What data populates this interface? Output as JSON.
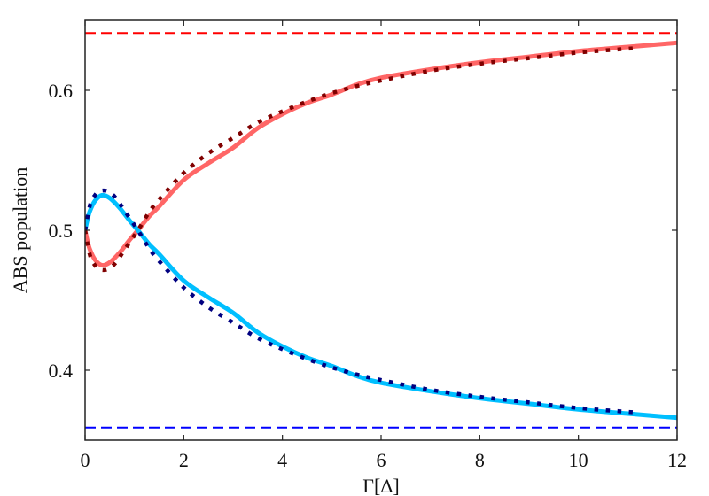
{
  "chart_data": {
    "type": "line",
    "title": "",
    "xlabel": "Γ[Δ]",
    "ylabel": "ABS population",
    "xlim": [
      0,
      12
    ],
    "ylim": [
      0.35,
      0.65
    ],
    "xticks": [
      0,
      2,
      4,
      6,
      8,
      10,
      12
    ],
    "xtick_labels": [
      "0",
      "2",
      "4",
      "6",
      "8",
      "10",
      "12"
    ],
    "yticks": [
      0.4,
      0.5,
      0.6
    ],
    "ytick_labels": [
      "0.4",
      "0.5",
      "0.6"
    ],
    "grid": false,
    "legend": null,
    "series": [
      {
        "name": "red-solid",
        "style": "solid",
        "color": "#ff6666",
        "x": [
          0,
          0.05,
          0.1,
          0.2,
          0.34,
          0.5,
          0.7,
          0.9,
          1.07,
          1.3,
          1.5,
          2,
          2.5,
          3,
          3.5,
          4,
          4.5,
          5,
          5.5,
          6,
          7,
          8,
          9,
          10,
          11,
          12
        ],
        "y": [
          0.5,
          0.492,
          0.486,
          0.479,
          0.475,
          0.477,
          0.484,
          0.493,
          0.5,
          0.51,
          0.517,
          0.536,
          0.548,
          0.559,
          0.573,
          0.583,
          0.591,
          0.597,
          0.604,
          0.609,
          0.615,
          0.62,
          0.624,
          0.628,
          0.631,
          0.634
        ]
      },
      {
        "name": "red-dotted",
        "style": "dotted",
        "color": "#800000",
        "x": [
          0,
          0.1,
          0.2,
          0.3,
          0.45,
          0.6,
          0.8,
          1.07,
          1.3,
          1.5,
          2,
          2.5,
          3,
          3.5,
          4,
          4.5,
          5,
          5.5,
          6,
          7,
          8,
          9,
          10,
          11.1
        ],
        "y": [
          0.5,
          0.482,
          0.475,
          0.472,
          0.472,
          0.476,
          0.486,
          0.5,
          0.513,
          0.522,
          0.541,
          0.555,
          0.566,
          0.577,
          0.585,
          0.592,
          0.598,
          0.603,
          0.607,
          0.614,
          0.619,
          0.623,
          0.627,
          0.63
        ]
      },
      {
        "name": "blue-solid",
        "style": "solid",
        "color": "#00bfff",
        "x": [
          0,
          0.05,
          0.1,
          0.2,
          0.34,
          0.5,
          0.7,
          0.9,
          1.07,
          1.3,
          1.5,
          2,
          2.5,
          3,
          3.5,
          4,
          4.5,
          5,
          5.5,
          6,
          7,
          8,
          9,
          10,
          11,
          12
        ],
        "y": [
          0.5,
          0.508,
          0.514,
          0.521,
          0.525,
          0.523,
          0.516,
          0.507,
          0.5,
          0.49,
          0.483,
          0.464,
          0.452,
          0.441,
          0.427,
          0.417,
          0.409,
          0.403,
          0.396,
          0.391,
          0.385,
          0.38,
          0.376,
          0.372,
          0.369,
          0.366
        ]
      },
      {
        "name": "blue-dotted",
        "style": "dotted",
        "color": "#000080",
        "x": [
          0,
          0.1,
          0.2,
          0.3,
          0.45,
          0.6,
          0.8,
          1.07,
          1.3,
          1.5,
          2,
          2.5,
          3,
          3.5,
          4,
          4.5,
          5,
          5.5,
          6,
          7,
          8,
          9,
          10,
          11.1
        ],
        "y": [
          0.5,
          0.518,
          0.525,
          0.528,
          0.528,
          0.524,
          0.514,
          0.5,
          0.487,
          0.478,
          0.459,
          0.445,
          0.434,
          0.423,
          0.415,
          0.408,
          0.402,
          0.397,
          0.393,
          0.386,
          0.381,
          0.377,
          0.373,
          0.37
        ]
      },
      {
        "name": "red-dashed-asymptote",
        "style": "dashed",
        "color": "#ff0000",
        "x": [
          0,
          12
        ],
        "y": [
          0.641,
          0.641
        ]
      },
      {
        "name": "blue-dashed-asymptote",
        "style": "dashed",
        "color": "#0000ff",
        "x": [
          0,
          12
        ],
        "y": [
          0.359,
          0.359
        ]
      }
    ]
  }
}
